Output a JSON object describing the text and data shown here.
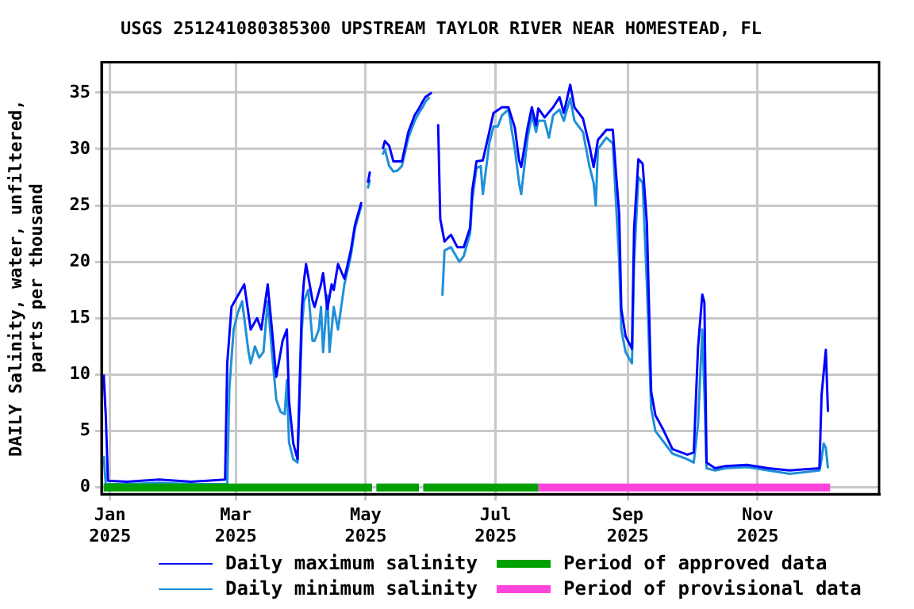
{
  "chart_data": {
    "type": "line",
    "title": "USGS 251241080385300 UPSTREAM TAYLOR RIVER NEAR HOMESTEAD, FL",
    "ylabel": "DAILY Salinity, water, unfiltered,\nparts per thousand",
    "xlim": [
      "2024-12-28",
      "2025-12-28"
    ],
    "xticks": [
      {
        "value": "2025-01-01",
        "label": "Jan 2025"
      },
      {
        "value": "2025-03-01",
        "label": "Mar 2025"
      },
      {
        "value": "2025-05-01",
        "label": "May 2025"
      },
      {
        "value": "2025-07-01",
        "label": "Jul 2025"
      },
      {
        "value": "2025-09-01",
        "label": "Sep 2025"
      },
      {
        "value": "2025-11-01",
        "label": "Nov 2025"
      }
    ],
    "ylim": [
      -0.6,
      37.7
    ],
    "yticks": [
      0,
      5,
      10,
      15,
      20,
      25,
      30,
      35
    ],
    "grid": true,
    "legend": "bottom",
    "series": [
      {
        "name": "Daily maximum salinity",
        "color": "#0000ff",
        "x": [
          "2024-12-29",
          "2024-12-30",
          "2024-12-31",
          "2025-01-09",
          "2025-01-24",
          "2025-02-08",
          "2025-02-24",
          "2025-02-25",
          "2025-02-27",
          "2025-03-02",
          "2025-03-05",
          "2025-03-08",
          "2025-03-11",
          "2025-03-13",
          "2025-03-16",
          "2025-03-18",
          "2025-03-20",
          "2025-03-23",
          "2025-03-25",
          "2025-03-26",
          "2025-03-28",
          "2025-03-30",
          "2025-04-01",
          "2025-04-02",
          "2025-04-03",
          "2025-04-06",
          "2025-04-07",
          "2025-04-10",
          "2025-04-11",
          "2025-04-13",
          "2025-04-15",
          "2025-04-16",
          "2025-04-18",
          "2025-04-21",
          "2025-04-24",
          "2025-04-26",
          "2025-04-29",
          "2025-04-30",
          "2025-05-02",
          "2025-05-03",
          "2025-05-04",
          "2025-05-09",
          "2025-05-10",
          "2025-05-12",
          "2025-05-14",
          "2025-05-18",
          "2025-05-21",
          "2025-05-24",
          "2025-05-26",
          "2025-05-28",
          "2025-05-29",
          "2025-06-01",
          "2025-06-02",
          "2025-06-04",
          "2025-06-05",
          "2025-06-07",
          "2025-06-10",
          "2025-06-13",
          "2025-06-16",
          "2025-06-19",
          "2025-06-20",
          "2025-06-22",
          "2025-06-25",
          "2025-06-28",
          "2025-06-30",
          "2025-07-04",
          "2025-07-07",
          "2025-07-10",
          "2025-07-12",
          "2025-07-13",
          "2025-07-16",
          "2025-07-18",
          "2025-07-20",
          "2025-07-21",
          "2025-07-24",
          "2025-07-28",
          "2025-07-31",
          "2025-08-02",
          "2025-08-05",
          "2025-08-07",
          "2025-08-11",
          "2025-08-14",
          "2025-08-16",
          "2025-08-18",
          "2025-08-22",
          "2025-08-25",
          "2025-08-26",
          "2025-08-28",
          "2025-08-29",
          "2025-08-31",
          "2025-09-03",
          "2025-09-04",
          "2025-09-06",
          "2025-09-08",
          "2025-09-10",
          "2025-09-12",
          "2025-09-14",
          "2025-09-18",
          "2025-09-22",
          "2025-09-29",
          "2025-10-02",
          "2025-10-04",
          "2025-10-06",
          "2025-10-07",
          "2025-10-08",
          "2025-10-12",
          "2025-10-17",
          "2025-10-27",
          "2025-11-06",
          "2025-11-16",
          "2025-11-30",
          "2025-12-01",
          "2025-12-03",
          "2025-12-04"
        ],
        "values": [
          10,
          6.3,
          0.6,
          0.5,
          0.7,
          0.5,
          0.7,
          11,
          16,
          17,
          18,
          14,
          15,
          14,
          18,
          14,
          9.8,
          13,
          14,
          7.7,
          3.9,
          2.5,
          15.8,
          18.3,
          19.8,
          16.6,
          16,
          18,
          19,
          15.8,
          18,
          17.5,
          19.8,
          18.5,
          21,
          23.3,
          25.3,
          null,
          27,
          28,
          null,
          30,
          30.7,
          30.3,
          28.9,
          28.9,
          31.5,
          33,
          33.6,
          34.3,
          34.6,
          35,
          null,
          32.2,
          23.8,
          21.8,
          22.4,
          21.3,
          21.3,
          23,
          26.3,
          28.9,
          29,
          31.5,
          33.2,
          33.7,
          33.7,
          31.9,
          29,
          28.4,
          31.9,
          33.7,
          32.1,
          33.6,
          32.8,
          33.7,
          34.6,
          33.2,
          35.7,
          33.7,
          32.7,
          30.3,
          28.4,
          30.8,
          31.7,
          31.7,
          29.1,
          24.2,
          15.8,
          13.4,
          12.3,
          23,
          29.1,
          28.7,
          23.4,
          8.5,
          6.4,
          5,
          3.4,
          2.9,
          3.1,
          12.4,
          17.1,
          16.4,
          2.2,
          1.7,
          1.9,
          2,
          1.7,
          1.5,
          1.7,
          8.2,
          12.2,
          6.7
        ]
      },
      {
        "name": "Daily minimum salinity",
        "color": "#1e90d8",
        "x": [
          "2024-12-29",
          "2024-12-30",
          "2025-01-09",
          "2025-01-24",
          "2025-02-08",
          "2025-02-25",
          "2025-02-26",
          "2025-02-28",
          "2025-03-02",
          "2025-03-04",
          "2025-03-07",
          "2025-03-08",
          "2025-03-10",
          "2025-03-12",
          "2025-03-14",
          "2025-03-16",
          "2025-03-18",
          "2025-03-20",
          "2025-03-22",
          "2025-03-24",
          "2025-03-25",
          "2025-03-26",
          "2025-03-28",
          "2025-03-30",
          "2025-04-01",
          "2025-04-02",
          "2025-04-04",
          "2025-04-06",
          "2025-04-07",
          "2025-04-09",
          "2025-04-10",
          "2025-04-11",
          "2025-04-13",
          "2025-04-14",
          "2025-04-16",
          "2025-04-18",
          "2025-04-21",
          "2025-04-24",
          "2025-04-26",
          "2025-04-29",
          "2025-04-30",
          "2025-05-02",
          "2025-05-03",
          "2025-05-04",
          "2025-05-09",
          "2025-05-10",
          "2025-05-12",
          "2025-05-14",
          "2025-05-16",
          "2025-05-18",
          "2025-05-21",
          "2025-05-24",
          "2025-05-26",
          "2025-05-28",
          "2025-05-29",
          "2025-05-31",
          "2025-06-02",
          "2025-06-06",
          "2025-06-07",
          "2025-06-10",
          "2025-06-14",
          "2025-06-16",
          "2025-06-19",
          "2025-06-20",
          "2025-06-22",
          "2025-06-24",
          "2025-06-25",
          "2025-06-28",
          "2025-06-30",
          "2025-07-02",
          "2025-07-04",
          "2025-07-07",
          "2025-07-10",
          "2025-07-12",
          "2025-07-13",
          "2025-07-16",
          "2025-07-18",
          "2025-07-20",
          "2025-07-21",
          "2025-07-24",
          "2025-07-26",
          "2025-07-28",
          "2025-07-31",
          "2025-08-02",
          "2025-08-05",
          "2025-08-07",
          "2025-08-11",
          "2025-08-14",
          "2025-08-16",
          "2025-08-17",
          "2025-08-18",
          "2025-08-22",
          "2025-08-25",
          "2025-08-26",
          "2025-08-28",
          "2025-08-29",
          "2025-08-31",
          "2025-09-03",
          "2025-09-04",
          "2025-09-06",
          "2025-09-08",
          "2025-09-10",
          "2025-09-12",
          "2025-09-14",
          "2025-09-18",
          "2025-09-22",
          "2025-09-29",
          "2025-10-02",
          "2025-10-04",
          "2025-10-06",
          "2025-10-07",
          "2025-10-08",
          "2025-10-12",
          "2025-10-17",
          "2025-10-27",
          "2025-11-06",
          "2025-11-16",
          "2025-11-30",
          "2025-12-01",
          "2025-12-02",
          "2025-12-03",
          "2025-12-04"
        ],
        "values": [
          2.8,
          0.3,
          0.3,
          0.4,
          0.3,
          0.3,
          8.8,
          14,
          15.5,
          16.5,
          12,
          11,
          12.5,
          11.5,
          12,
          16.5,
          12,
          7.8,
          6.7,
          6.5,
          9.5,
          4,
          2.5,
          2.2,
          14,
          16.5,
          17.5,
          13,
          13,
          14,
          16,
          12,
          17,
          12,
          16,
          14,
          18,
          20.5,
          23,
          25,
          null,
          26.5,
          27.3,
          null,
          29.5,
          30,
          28.5,
          28,
          28.1,
          28.5,
          31,
          32.5,
          33.2,
          33.8,
          34.2,
          34.6,
          null,
          17,
          21,
          21.3,
          20,
          20.5,
          22.5,
          25.5,
          28.3,
          28.5,
          26,
          30.5,
          32,
          32,
          33,
          33.5,
          30,
          27,
          26,
          31,
          33,
          31.5,
          32.5,
          32.5,
          31,
          33,
          33.5,
          32.5,
          34.5,
          32.5,
          31.5,
          28.5,
          27,
          25,
          30,
          31,
          30.5,
          27,
          20,
          14,
          12,
          11,
          20,
          27.5,
          27,
          18,
          7,
          5,
          4,
          3,
          2.5,
          2.2,
          5.6,
          14,
          8.4,
          1.7,
          1.5,
          1.7,
          1.8,
          1.5,
          1.2,
          1.5,
          2.5,
          3.9,
          3.5,
          1.7
        ]
      },
      {
        "name": "Period of approved data",
        "color": "#00a000",
        "x": [
          "2024-12-29",
          "2025-05-04",
          "2025-05-05",
          "2025-05-06",
          "2025-05-26",
          "2025-05-27",
          "2025-05-28",
          "2025-07-21"
        ],
        "values": [
          0,
          0,
          null,
          0,
          0,
          null,
          0,
          0
        ]
      },
      {
        "name": "Period of provisional data",
        "color": "#ff44dd",
        "x": [
          "2025-07-21",
          "2025-12-05"
        ],
        "values": [
          0,
          0
        ]
      }
    ]
  }
}
